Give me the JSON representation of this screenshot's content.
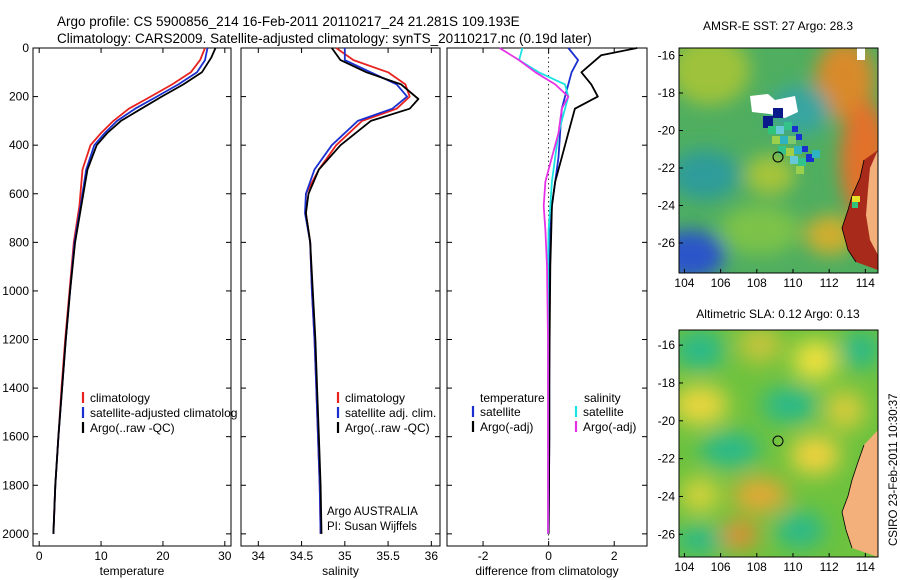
{
  "header": {
    "title_line1": "Argo profile: CS 5900856_214 16-Feb-2011 20110217_24 21.281S 109.193E",
    "title_line2": "Climatology: CARS2009. Satellite-adjusted climatology: synTS_20110217.nc (0.19d later)"
  },
  "footer": {
    "stamp": "CSIRO 23-Feb-2011 10:30:37"
  },
  "colors": {
    "climatology": "#e8231f",
    "satellite": "#1a2fcf",
    "argo": "#000000",
    "sat_sal": "#19e3e3",
    "argo_sal": "#e632e6"
  },
  "chart_data": [
    {
      "type": "line",
      "xlabel": "temperature",
      "ylabel": "",
      "xlim": [
        -1,
        31
      ],
      "ylim": [
        2050,
        0
      ],
      "y_reversed": true,
      "xticks": [
        0,
        10,
        20,
        30
      ],
      "yticks": [
        0,
        200,
        400,
        600,
        800,
        1000,
        1200,
        1400,
        1600,
        1800,
        2000
      ],
      "legend": [
        "climatology",
        "satellite-adjusted climatolog",
        "Argo(..raw -QC)"
      ],
      "series": [
        {
          "name": "climatology",
          "color": "#e8231f",
          "x": [
            26.8,
            26.0,
            24.5,
            21.5,
            18.0,
            14.5,
            12.0,
            10.0,
            8.3,
            7.0,
            6.5,
            5.6,
            4.9,
            4.2,
            3.6,
            3.1,
            2.6,
            2.3
          ],
          "y": [
            0,
            50,
            100,
            150,
            200,
            250,
            300,
            350,
            400,
            500,
            650,
            800,
            1000,
            1200,
            1400,
            1600,
            1800,
            2000
          ]
        },
        {
          "name": "satellite-adjusted climatolog",
          "color": "#1a2fcf",
          "x": [
            27.2,
            26.8,
            25.5,
            22.5,
            19.0,
            15.5,
            12.6,
            10.6,
            8.9,
            7.6,
            6.7,
            5.7,
            5.0,
            4.3,
            3.7,
            3.1,
            2.6,
            2.3
          ],
          "y": [
            0,
            50,
            100,
            150,
            200,
            250,
            300,
            350,
            400,
            500,
            650,
            800,
            1000,
            1200,
            1400,
            1600,
            1800,
            2000
          ]
        },
        {
          "name": "Argo(..raw -QC)",
          "color": "#000000",
          "x": [
            28.5,
            27.8,
            26.3,
            23.3,
            19.8,
            16.5,
            13.2,
            11.0,
            9.3,
            7.8,
            6.8,
            5.8,
            5.0,
            4.3,
            3.7,
            3.1,
            2.6,
            2.3
          ],
          "y": [
            0,
            40,
            100,
            150,
            200,
            250,
            300,
            350,
            400,
            500,
            650,
            800,
            1000,
            1200,
            1400,
            1600,
            1800,
            2000
          ]
        }
      ]
    },
    {
      "type": "line",
      "xlabel": "salinity",
      "xlim": [
        33.8,
        36.1
      ],
      "ylim": [
        2050,
        0
      ],
      "y_reversed": true,
      "xticks": [
        34,
        34.5,
        35,
        35.5,
        36
      ],
      "yticks": [
        0,
        200,
        400,
        600,
        800,
        1000,
        1200,
        1400,
        1600,
        1800,
        2000
      ],
      "legend": [
        "climatology",
        "satellite adj. clim.",
        "Argo(..raw -QC)"
      ],
      "annotations": [
        "Argo AUSTRALIA",
        "PI: Susan Wijffels"
      ],
      "series": [
        {
          "name": "climatology",
          "color": "#e8231f",
          "x": [
            34.9,
            35.1,
            35.5,
            35.7,
            35.75,
            35.6,
            35.2,
            34.9,
            34.7,
            34.55,
            34.55,
            34.6,
            34.62,
            34.65,
            34.67,
            34.69,
            34.71,
            34.72
          ],
          "y": [
            0,
            50,
            100,
            150,
            200,
            250,
            300,
            400,
            500,
            600,
            680,
            800,
            1000,
            1200,
            1400,
            1600,
            1800,
            2000
          ]
        },
        {
          "name": "satellite adj. clim.",
          "color": "#1a2fcf",
          "x": [
            35.0,
            35.0,
            35.3,
            35.6,
            35.72,
            35.55,
            35.15,
            34.85,
            34.65,
            34.55,
            34.54,
            34.6,
            34.62,
            34.65,
            34.67,
            34.69,
            34.71,
            34.72
          ],
          "y": [
            0,
            50,
            100,
            150,
            200,
            250,
            300,
            400,
            500,
            600,
            680,
            800,
            1000,
            1200,
            1400,
            1600,
            1800,
            2000
          ]
        },
        {
          "name": "Argo(..raw -QC)",
          "color": "#000000",
          "x": [
            34.85,
            34.95,
            35.25,
            35.65,
            35.85,
            35.75,
            35.3,
            34.95,
            34.7,
            34.58,
            34.55,
            34.6,
            34.63,
            34.66,
            34.68,
            34.7,
            34.72,
            34.73
          ],
          "y": [
            0,
            50,
            100,
            150,
            210,
            250,
            300,
            400,
            500,
            600,
            680,
            800,
            1000,
            1200,
            1400,
            1600,
            1800,
            2000
          ]
        }
      ]
    },
    {
      "type": "line",
      "xlabel": "difference from climatology",
      "xlim": [
        -3.1,
        3.0
      ],
      "ylim": [
        2050,
        0
      ],
      "y_reversed": true,
      "xticks": [
        -2,
        0,
        2
      ],
      "yticks": [
        0,
        200,
        400,
        600,
        800,
        1000,
        1200,
        1400,
        1600,
        1800,
        2000
      ],
      "legend_columns": [
        "temperature",
        "salinity"
      ],
      "legend": [
        "satellite",
        "Argo(-adj)",
        "satellite",
        "Argo(-adj)"
      ],
      "series": [
        {
          "name": "satellite",
          "color": "#1a2fcf",
          "x": [
            0.6,
            0.9,
            0.7,
            0.6,
            0.5,
            0.4,
            0.35,
            0.3,
            0.2,
            0.1,
            0.05,
            0.03,
            0.02,
            0.02,
            0.02,
            0.01,
            0.0
          ],
          "y": [
            0,
            50,
            100,
            150,
            200,
            250,
            350,
            450,
            550,
            650,
            750,
            900,
            1200,
            1400,
            1600,
            1800,
            2000
          ]
        },
        {
          "name": "Argo(-adj)",
          "color": "#000000",
          "x": [
            2.7,
            1.6,
            1.0,
            1.3,
            1.5,
            0.8,
            0.6,
            0.4,
            0.2,
            0.1,
            0.08,
            0.05,
            0.03,
            0.02,
            0.02,
            0.01,
            0.0
          ],
          "y": [
            0,
            30,
            100,
            150,
            200,
            250,
            350,
            450,
            550,
            650,
            750,
            900,
            1200,
            1400,
            1600,
            1800,
            2000
          ]
        },
        {
          "name": "satellite",
          "color": "#19e3e3",
          "x": [
            -0.8,
            -0.9,
            -0.3,
            0.5,
            0.6,
            0.5,
            0.3,
            0.2,
            0.1,
            0.05,
            0.0,
            -0.02,
            -0.02,
            -0.02,
            -0.02,
            -0.02,
            -0.02
          ],
          "y": [
            0,
            50,
            100,
            150,
            200,
            250,
            350,
            450,
            550,
            650,
            750,
            900,
            1200,
            1400,
            1600,
            1800,
            2000
          ]
        },
        {
          "name": "Argo(-adj)",
          "color": "#e632e6",
          "x": [
            -1.5,
            -0.9,
            -0.4,
            0.2,
            0.6,
            0.4,
            0.3,
            0.1,
            -0.1,
            -0.15,
            -0.1,
            -0.05,
            -0.02,
            -0.02,
            -0.02,
            -0.02,
            -0.02
          ],
          "y": [
            0,
            50,
            100,
            150,
            200,
            250,
            350,
            450,
            550,
            650,
            750,
            900,
            1200,
            1400,
            1600,
            1800,
            2000
          ]
        }
      ]
    },
    {
      "type": "heatmap",
      "title": "AMSR-E SST: 27 Argo: 28.3",
      "xlim": [
        103.7,
        114.7
      ],
      "ylim": [
        -27.6,
        -15.6
      ],
      "xticks": [
        104,
        106,
        108,
        110,
        112,
        114
      ],
      "yticks": [
        -16,
        -18,
        -20,
        -22,
        -24,
        -26
      ],
      "argo_position": [
        109.193,
        -21.281
      ]
    },
    {
      "type": "heatmap",
      "title": "Altimetric SLA: 0.12 Argo: 0.13",
      "xlim": [
        103.7,
        114.7
      ],
      "ylim": [
        -27.2,
        -15.2
      ],
      "xticks": [
        104,
        106,
        108,
        110,
        112,
        114
      ],
      "yticks": [
        -16,
        -18,
        -20,
        -22,
        -24,
        -26
      ],
      "argo_position": [
        109.193,
        -21.281
      ]
    }
  ]
}
